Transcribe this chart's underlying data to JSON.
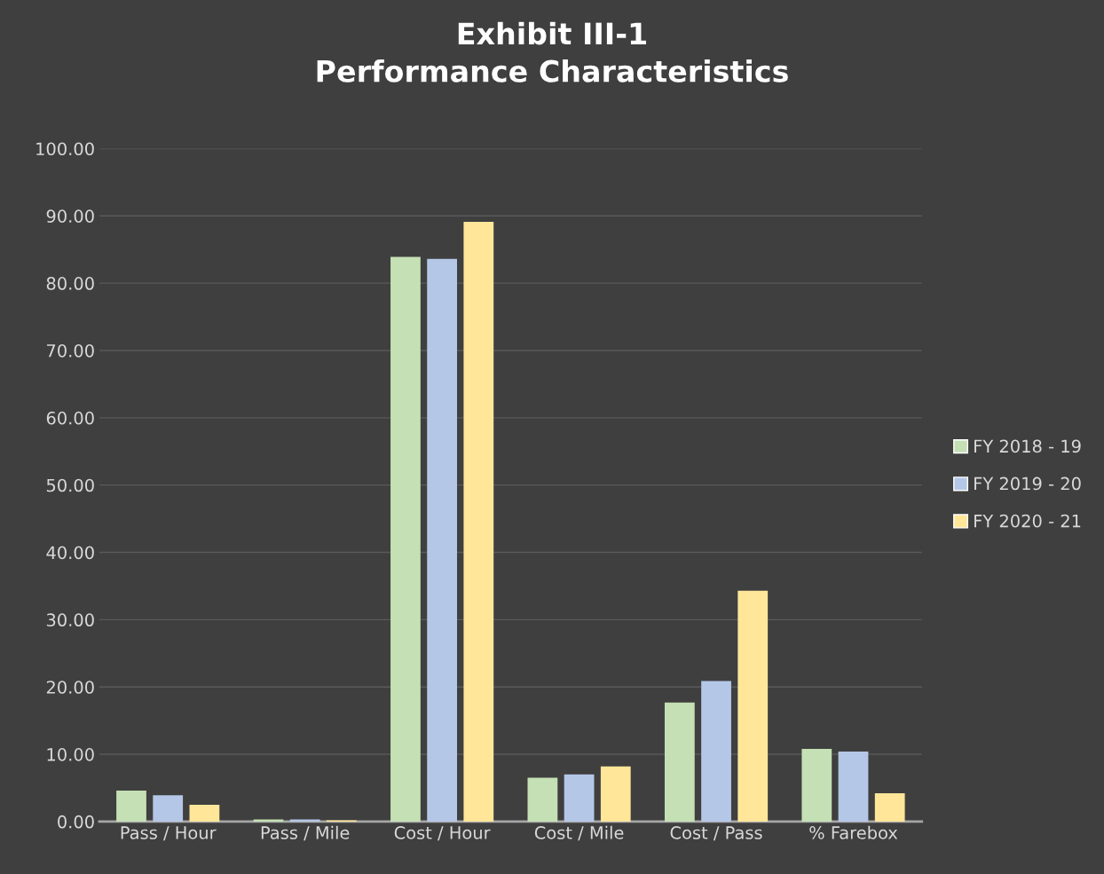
{
  "chart_data": {
    "type": "bar",
    "title": "Exhibit III-1\nPerformance Characteristics",
    "categories": [
      "Pass / Hour",
      "Pass / Mile",
      "Cost / Hour",
      "Cost / Mile",
      "Cost / Pass",
      "% Farebox"
    ],
    "series": [
      {
        "name": "FY 2018 - 19",
        "color": "#c5e0b4",
        "values": [
          4.6,
          0.3,
          83.9,
          6.5,
          17.7,
          10.8
        ]
      },
      {
        "name": "FY 2019 - 20",
        "color": "#b4c7e7",
        "values": [
          3.9,
          0.3,
          83.6,
          7.0,
          20.9,
          10.4
        ]
      },
      {
        "name": "FY 2020 - 21",
        "color": "#ffe699",
        "values": [
          2.5,
          0.2,
          89.1,
          8.2,
          34.3,
          4.2
        ]
      }
    ],
    "ylim": [
      0,
      100
    ],
    "yticks": [
      {
        "value": 0,
        "label": "0.00"
      },
      {
        "value": 10,
        "label": "10.00"
      },
      {
        "value": 20,
        "label": "20.00"
      },
      {
        "value": 30,
        "label": "30.00"
      },
      {
        "value": 40,
        "label": "40.00"
      },
      {
        "value": 50,
        "label": "50.00"
      },
      {
        "value": 60,
        "label": "60.00"
      },
      {
        "value": 70,
        "label": "70.00"
      },
      {
        "value": 80,
        "label": "80.00"
      },
      {
        "value": 90,
        "label": "90.00"
      },
      {
        "value": 100,
        "label": "100.00"
      }
    ],
    "grid": "y",
    "legend": "right"
  }
}
